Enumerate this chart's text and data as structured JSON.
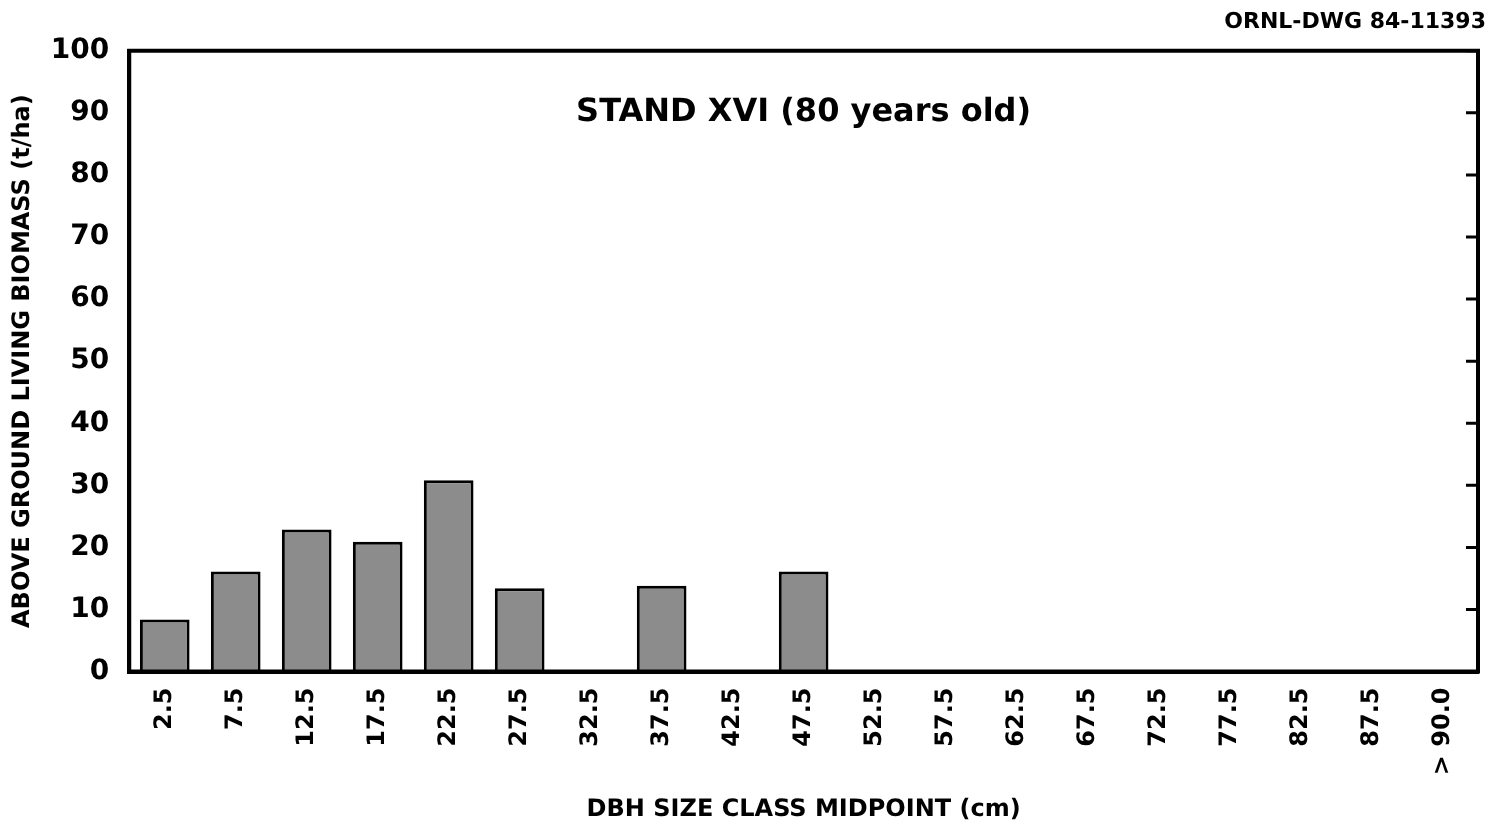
{
  "chart_data": {
    "type": "bar",
    "title": "STAND XVI (80 years old)",
    "xlabel": "DBH SIZE CLASS MIDPOINT (cm)",
    "ylabel": "ABOVE GROUND LIVING BIOMASS (t/ha)",
    "annotations": [
      "ORNL-DWG 84-11393"
    ],
    "categories": [
      "2.5",
      "7.5",
      "12.5",
      "17.5",
      "22.5",
      "27.5",
      "32.5",
      "37.5",
      "42.5",
      "47.5",
      "52.5",
      "57.5",
      "62.5",
      "67.5",
      "72.5",
      "77.5",
      "82.5",
      "87.5",
      "> 90.0"
    ],
    "values": [
      8.4,
      16.1,
      22.9,
      20.9,
      30.8,
      13.4,
      null,
      13.8,
      null,
      16.1,
      null,
      null,
      null,
      null,
      null,
      null,
      null,
      null,
      null
    ],
    "color": "#8c8c8c",
    "ylim": [
      0,
      100
    ],
    "yticks": [
      0,
      10,
      20,
      30,
      40,
      50,
      60,
      70,
      80,
      90,
      100
    ],
    "grid": false
  }
}
